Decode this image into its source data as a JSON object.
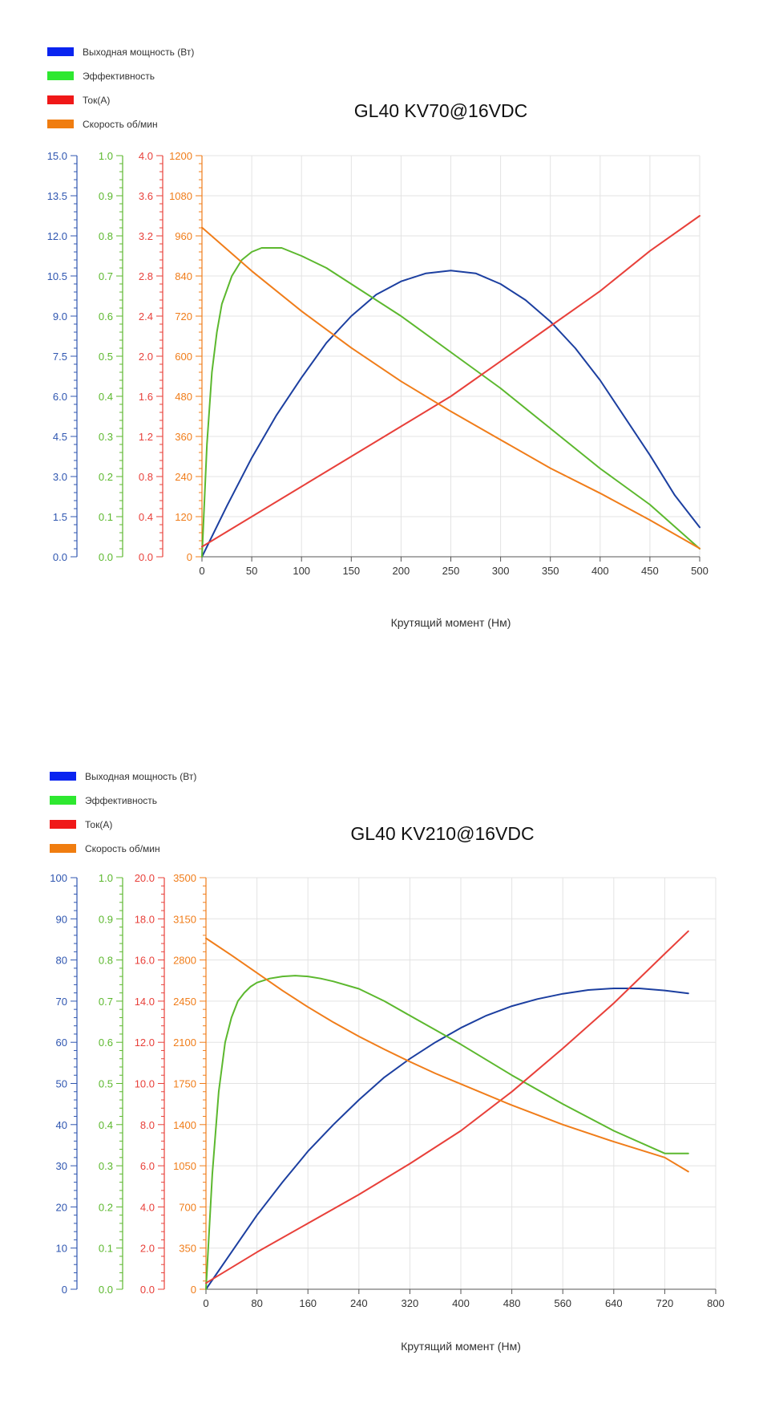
{
  "chart_data": [
    {
      "type": "line",
      "title": "GL40 KV70@16VDC",
      "xlabel": "Крутящий момент (Нм)",
      "xlim": [
        0,
        500
      ],
      "xticks": [
        0,
        50,
        100,
        150,
        200,
        250,
        300,
        350,
        400,
        450,
        500
      ],
      "legend": {
        "placement": "top-left"
      },
      "grid": true,
      "axes": [
        {
          "id": "power",
          "color": "#2f56b0",
          "lim": [
            0,
            15
          ],
          "ticks": [
            "0.0",
            "1.5",
            "3.0",
            "4.5",
            "6.0",
            "7.5",
            "9.0",
            "10.5",
            "12.0",
            "13.5",
            "15.0"
          ]
        },
        {
          "id": "eff",
          "color": "#5cb82e",
          "lim": [
            0,
            1
          ],
          "ticks": [
            "0.0",
            "0.1",
            "0.2",
            "0.3",
            "0.4",
            "0.5",
            "0.6",
            "0.7",
            "0.8",
            "0.9",
            "1.0"
          ]
        },
        {
          "id": "cur",
          "color": "#e8403a",
          "lim": [
            0,
            4
          ],
          "ticks": [
            "0.0",
            "0.4",
            "0.8",
            "1.2",
            "1.6",
            "2.0",
            "2.4",
            "2.8",
            "3.2",
            "3.6",
            "4.0"
          ]
        },
        {
          "id": "rpm",
          "color": "#f07d1a",
          "lim": [
            0,
            1200
          ],
          "ticks": [
            "0",
            "120",
            "240",
            "360",
            "480",
            "600",
            "720",
            "840",
            "960",
            "1080",
            "1200"
          ]
        }
      ],
      "series": [
        {
          "name": "Выходная мощность (Вт)",
          "legend_color": "#0a24f0",
          "line_color": "#1c3fa0",
          "axis": "power",
          "x": [
            0,
            25,
            50,
            75,
            100,
            125,
            150,
            175,
            200,
            225,
            250,
            275,
            300,
            325,
            350,
            375,
            400,
            425,
            450,
            475,
            500
          ],
          "y": [
            0,
            1.9,
            3.7,
            5.3,
            6.7,
            8.0,
            9.0,
            9.8,
            10.3,
            10.6,
            10.7,
            10.6,
            10.2,
            9.6,
            8.8,
            7.8,
            6.6,
            5.2,
            3.8,
            2.3,
            1.1
          ]
        },
        {
          "name": "Эффективность",
          "legend_color": "#2ee830",
          "line_color": "#5cb82e",
          "axis": "eff",
          "x": [
            0,
            5,
            10,
            15,
            20,
            30,
            40,
            50,
            60,
            70,
            80,
            100,
            125,
            150,
            200,
            250,
            300,
            350,
            400,
            450,
            500
          ],
          "y": [
            0,
            0.28,
            0.46,
            0.56,
            0.63,
            0.7,
            0.74,
            0.76,
            0.77,
            0.77,
            0.77,
            0.75,
            0.72,
            0.68,
            0.6,
            0.51,
            0.42,
            0.32,
            0.22,
            0.13,
            0.02
          ]
        },
        {
          "name": "Ток(А)",
          "legend_color": "#f01818",
          "line_color": "#e8403a",
          "axis": "cur",
          "x": [
            0,
            50,
            100,
            150,
            200,
            250,
            300,
            350,
            400,
            450,
            500
          ],
          "y": [
            0.1,
            0.4,
            0.7,
            1.0,
            1.3,
            1.6,
            1.95,
            2.3,
            2.65,
            3.05,
            3.4
          ]
        },
        {
          "name": "Скорость об/мин",
          "legend_color": "#f07d10",
          "line_color": "#f07d1a",
          "axis": "rpm",
          "x": [
            0,
            50,
            100,
            150,
            200,
            250,
            300,
            350,
            400,
            450,
            500
          ],
          "y": [
            985,
            855,
            735,
            625,
            525,
            435,
            350,
            265,
            190,
            110,
            25
          ]
        }
      ]
    },
    {
      "type": "line",
      "title": "GL40 KV210@16VDC",
      "xlabel": "Крутящий момент (Нм)",
      "xlim": [
        0,
        800
      ],
      "xticks": [
        0,
        80,
        160,
        240,
        320,
        400,
        480,
        560,
        640,
        720,
        800
      ],
      "legend": {
        "placement": "top-left"
      },
      "grid": true,
      "axes": [
        {
          "id": "power",
          "color": "#2f56b0",
          "lim": [
            0,
            100
          ],
          "ticks": [
            "0",
            "10",
            "20",
            "30",
            "40",
            "50",
            "60",
            "70",
            "80",
            "90",
            "100"
          ]
        },
        {
          "id": "eff",
          "color": "#5cb82e",
          "lim": [
            0,
            1
          ],
          "ticks": [
            "0.0",
            "0.1",
            "0.2",
            "0.3",
            "0.4",
            "0.5",
            "0.6",
            "0.7",
            "0.8",
            "0.9",
            "1.0"
          ]
        },
        {
          "id": "cur",
          "color": "#e8403a",
          "lim": [
            0,
            20
          ],
          "ticks": [
            "0.0",
            "2.0",
            "4.0",
            "6.0",
            "8.0",
            "10.0",
            "12.0",
            "14.0",
            "16.0",
            "18.0",
            "20.0"
          ]
        },
        {
          "id": "rpm",
          "color": "#f07d1a",
          "lim": [
            0,
            3500
          ],
          "ticks": [
            "0",
            "350",
            "700",
            "1050",
            "1400",
            "1750",
            "2100",
            "2450",
            "2800",
            "3150",
            "3500"
          ]
        }
      ],
      "series": [
        {
          "name": "Выходная мощность (Вт)",
          "legend_color": "#0a24f0",
          "line_color": "#1c3fa0",
          "axis": "power",
          "x": [
            0,
            40,
            80,
            120,
            160,
            200,
            240,
            280,
            320,
            360,
            400,
            440,
            480,
            520,
            560,
            600,
            640,
            680,
            720,
            757
          ],
          "y": [
            0,
            9,
            18,
            26,
            33.5,
            40,
            46,
            51.5,
            56,
            60,
            63.5,
            66.5,
            68.8,
            70.5,
            71.8,
            72.7,
            73.1,
            73.1,
            72.6,
            71.9
          ]
        },
        {
          "name": "Эффективность",
          "legend_color": "#2ee830",
          "line_color": "#5cb82e",
          "axis": "eff",
          "x": [
            0,
            10,
            20,
            30,
            40,
            50,
            60,
            70,
            80,
            100,
            120,
            140,
            160,
            180,
            200,
            240,
            280,
            320,
            360,
            400,
            480,
            560,
            640,
            720,
            757
          ],
          "y": [
            0,
            0.28,
            0.48,
            0.6,
            0.66,
            0.7,
            0.72,
            0.735,
            0.745,
            0.755,
            0.76,
            0.762,
            0.76,
            0.755,
            0.748,
            0.73,
            0.7,
            0.665,
            0.63,
            0.595,
            0.52,
            0.45,
            0.385,
            0.33,
            0.33
          ]
        },
        {
          "name": "Ток(А)",
          "legend_color": "#f01818",
          "line_color": "#e8403a",
          "axis": "cur",
          "x": [
            0,
            80,
            160,
            240,
            320,
            400,
            480,
            560,
            640,
            720,
            757
          ],
          "y": [
            0.3,
            1.8,
            3.2,
            4.6,
            6.1,
            7.7,
            9.6,
            11.7,
            13.9,
            16.3,
            17.4
          ]
        },
        {
          "name": "Скорость об/мин",
          "legend_color": "#f07d10",
          "line_color": "#f07d1a",
          "axis": "rpm",
          "x": [
            0,
            40,
            80,
            120,
            160,
            200,
            240,
            280,
            320,
            360,
            400,
            480,
            560,
            640,
            720,
            757
          ],
          "y": [
            2985,
            2840,
            2690,
            2540,
            2400,
            2270,
            2150,
            2040,
            1935,
            1835,
            1745,
            1565,
            1400,
            1255,
            1120,
            1000
          ]
        }
      ]
    }
  ]
}
